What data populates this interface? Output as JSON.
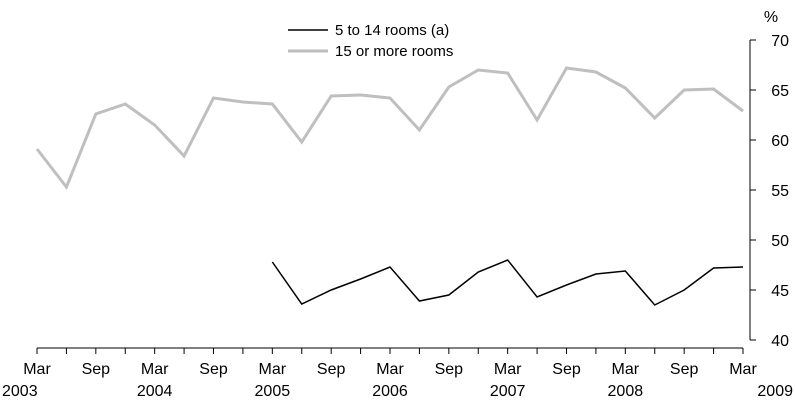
{
  "chart_data": {
    "type": "line",
    "title": "",
    "xlabel": "",
    "ylabel": "%",
    "ylim": [
      40,
      70
    ],
    "yticks": [
      40,
      45,
      50,
      55,
      60,
      65,
      70
    ],
    "x": [
      "2003-03",
      "2003-06",
      "2003-09",
      "2003-12",
      "2004-03",
      "2004-06",
      "2004-09",
      "2004-12",
      "2005-03",
      "2005-06",
      "2005-09",
      "2005-12",
      "2006-03",
      "2006-06",
      "2006-09",
      "2006-12",
      "2007-03",
      "2007-06",
      "2007-09",
      "2007-12",
      "2008-03",
      "2008-06",
      "2008-09",
      "2008-12",
      "2009-03"
    ],
    "x_tick_labels": [
      {
        "month": "Mar",
        "year": "2003"
      },
      {
        "month": "Sep",
        "year": ""
      },
      {
        "month": "Mar",
        "year": "2004"
      },
      {
        "month": "Sep",
        "year": ""
      },
      {
        "month": "Mar",
        "year": "2005"
      },
      {
        "month": "Sep",
        "year": ""
      },
      {
        "month": "Mar",
        "year": "2006"
      },
      {
        "month": "Sep",
        "year": ""
      },
      {
        "month": "Mar",
        "year": "2007"
      },
      {
        "month": "Sep",
        "year": ""
      },
      {
        "month": "Mar",
        "year": "2008"
      },
      {
        "month": "Sep",
        "year": ""
      },
      {
        "month": "Mar",
        "year": "2009"
      }
    ],
    "series": [
      {
        "name": "5 to 14 rooms (a)",
        "color": "#000000",
        "values": [
          null,
          null,
          null,
          null,
          null,
          null,
          null,
          null,
          47.8,
          43.6,
          45.0,
          46.1,
          47.3,
          43.9,
          44.5,
          46.8,
          48.0,
          44.3,
          45.5,
          46.6,
          46.9,
          43.5,
          45.0,
          47.2,
          47.3
        ]
      },
      {
        "name": "15 or more rooms",
        "color": "#bfbfbf",
        "values": [
          59.1,
          55.3,
          62.6,
          63.6,
          61.5,
          58.4,
          64.2,
          63.8,
          63.6,
          59.8,
          64.4,
          64.5,
          64.2,
          61.0,
          65.3,
          67.0,
          66.7,
          62.0,
          67.2,
          66.8,
          65.2,
          62.2,
          65.0,
          65.1,
          62.9
        ]
      }
    ],
    "legend_position": "top-center",
    "grid": false
  }
}
